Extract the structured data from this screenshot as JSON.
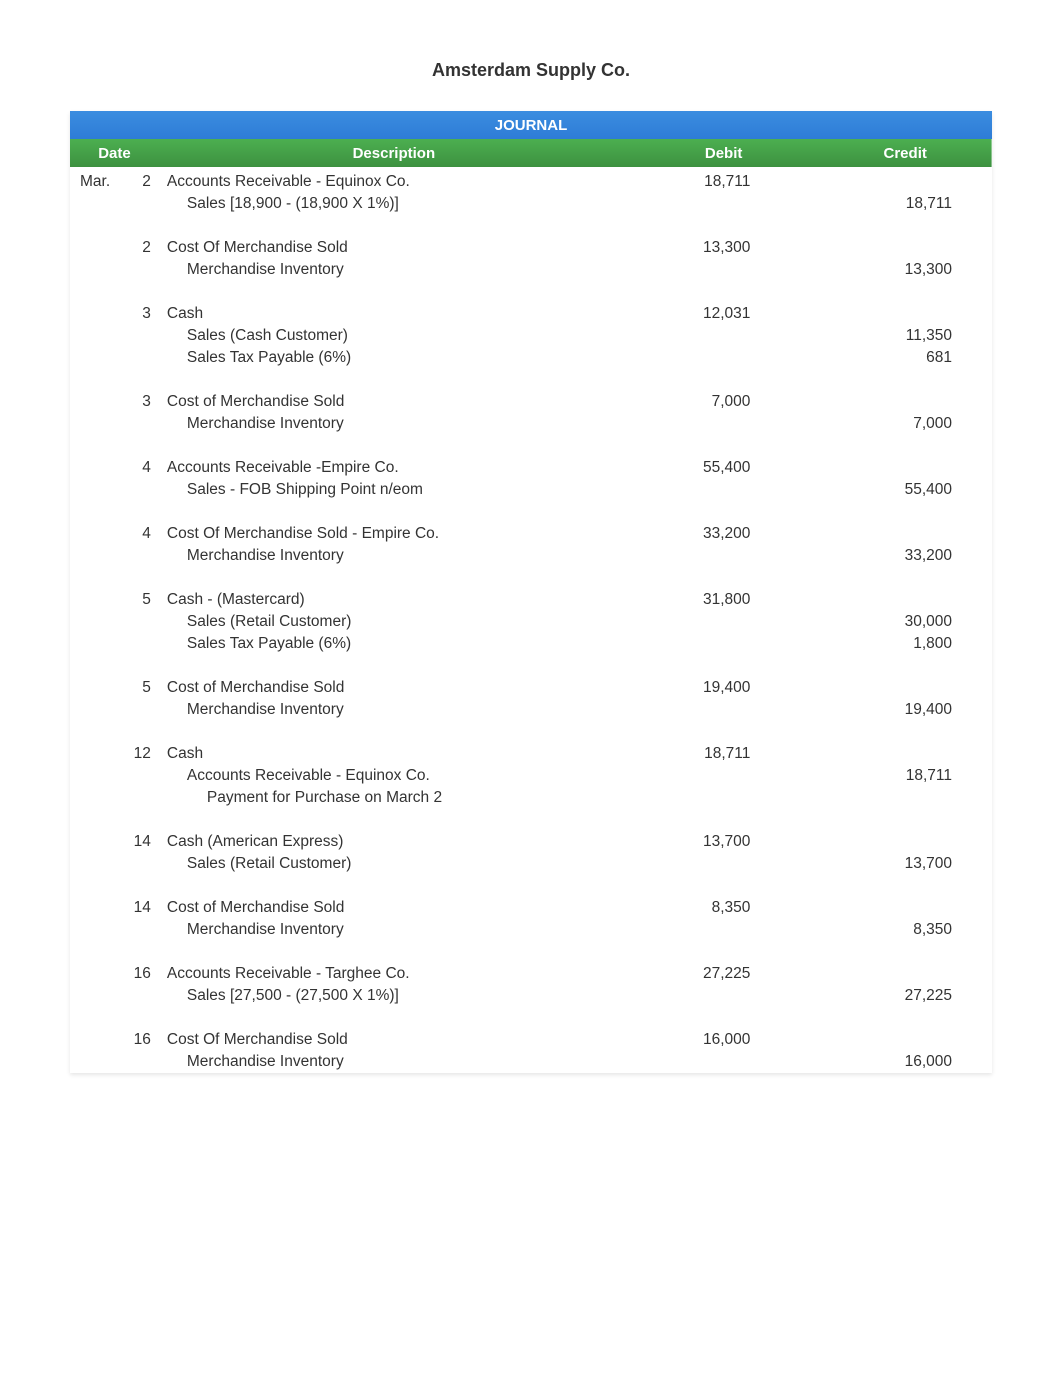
{
  "company_name": "Amsterdam Supply Co.",
  "journal_title": "JOURNAL",
  "headers": {
    "date": "Date",
    "description": "Description",
    "debit": "Debit",
    "credit": "Credit"
  },
  "colors": {
    "journal_header_bg": "#2e7cd6",
    "column_header_bg": "#3d9140",
    "text": "#333333",
    "background": "#ffffff"
  },
  "month": "Mar.",
  "entries": [
    {
      "day": "2",
      "show_month": true,
      "lines": [
        {
          "desc": "Accounts Receivable - Equinox Co.",
          "debit": "18,711",
          "credit": "",
          "indent": 0
        },
        {
          "desc": "Sales [18,900 - (18,900 X 1%)]",
          "debit": "",
          "credit": "18,711",
          "indent": 1
        }
      ]
    },
    {
      "day": "2",
      "lines": [
        {
          "desc": "Cost Of Merchandise Sold",
          "debit": "13,300",
          "credit": "",
          "indent": 0
        },
        {
          "desc": "Merchandise Inventory",
          "debit": "",
          "credit": "13,300",
          "indent": 1
        }
      ]
    },
    {
      "day": "3",
      "lines": [
        {
          "desc": "Cash",
          "debit": "12,031",
          "credit": "",
          "indent": 0
        },
        {
          "desc": "Sales   (Cash Customer)",
          "debit": "",
          "credit": "11,350",
          "indent": 1
        },
        {
          "desc": "Sales Tax Payable (6%)",
          "debit": "",
          "credit": "681",
          "indent": 1
        }
      ]
    },
    {
      "day": "3",
      "lines": [
        {
          "desc": "Cost of Merchandise Sold",
          "debit": "7,000",
          "credit": "",
          "indent": 0
        },
        {
          "desc": "Merchandise Inventory",
          "debit": "",
          "credit": "7,000",
          "indent": 1
        }
      ]
    },
    {
      "day": "4",
      "lines": [
        {
          "desc": "Accounts Receivable -Empire Co.",
          "debit": "55,400",
          "credit": "",
          "indent": 0
        },
        {
          "desc": "Sales - FOB Shipping Point n/eom",
          "debit": "",
          "credit": "55,400",
          "indent": 1
        }
      ]
    },
    {
      "day": "4",
      "lines": [
        {
          "desc": "Cost Of Merchandise Sold - Empire Co.",
          "debit": "33,200",
          "credit": "",
          "indent": 0
        },
        {
          "desc": "Merchandise Inventory",
          "debit": "",
          "credit": "33,200",
          "indent": 1
        }
      ]
    },
    {
      "day": "5",
      "lines": [
        {
          "desc": "Cash - (Mastercard)",
          "debit": "31,800",
          "credit": "",
          "indent": 0
        },
        {
          "desc": "Sales   (Retail Customer)",
          "debit": "",
          "credit": "30,000",
          "indent": 1
        },
        {
          "desc": "Sales Tax Payable (6%)",
          "debit": "",
          "credit": "1,800",
          "indent": 1
        }
      ]
    },
    {
      "day": "5",
      "lines": [
        {
          "desc": "Cost of Merchandise Sold",
          "debit": "19,400",
          "credit": "",
          "indent": 0
        },
        {
          "desc": "Merchandise Inventory",
          "debit": "",
          "credit": "19,400",
          "indent": 1
        }
      ]
    },
    {
      "day": "12",
      "lines": [
        {
          "desc": "Cash",
          "debit": "18,711",
          "credit": "",
          "indent": 0
        },
        {
          "desc": "Accounts Receivable - Equinox Co.",
          "debit": "",
          "credit": "18,711",
          "indent": 1
        },
        {
          "desc": "Payment for Purchase on March 2",
          "debit": "",
          "credit": "",
          "indent": 2
        }
      ]
    },
    {
      "day": "14",
      "lines": [
        {
          "desc": "Cash (American Express)",
          "debit": "13,700",
          "credit": "",
          "indent": 0
        },
        {
          "desc": "Sales   (Retail Customer)",
          "debit": "",
          "credit": "13,700",
          "indent": 1
        }
      ]
    },
    {
      "day": "14",
      "lines": [
        {
          "desc": "Cost of Merchandise Sold",
          "debit": "8,350",
          "credit": "",
          "indent": 0
        },
        {
          "desc": "Merchandise Inventory",
          "debit": "",
          "credit": "8,350",
          "indent": 1
        }
      ]
    },
    {
      "day": "16",
      "lines": [
        {
          "desc": "Accounts Receivable - Targhee Co.",
          "debit": "27,225",
          "credit": "",
          "indent": 0
        },
        {
          "desc": "Sales [27,500 - (27,500 X 1%)]",
          "debit": "",
          "credit": "27,225",
          "indent": 1
        }
      ]
    },
    {
      "day": "16",
      "lines": [
        {
          "desc": "Cost Of Merchandise Sold",
          "debit": "16,000",
          "credit": "",
          "indent": 0
        },
        {
          "desc": "Merchandise Inventory",
          "debit": "",
          "credit": "16,000",
          "indent": 1
        }
      ]
    }
  ]
}
